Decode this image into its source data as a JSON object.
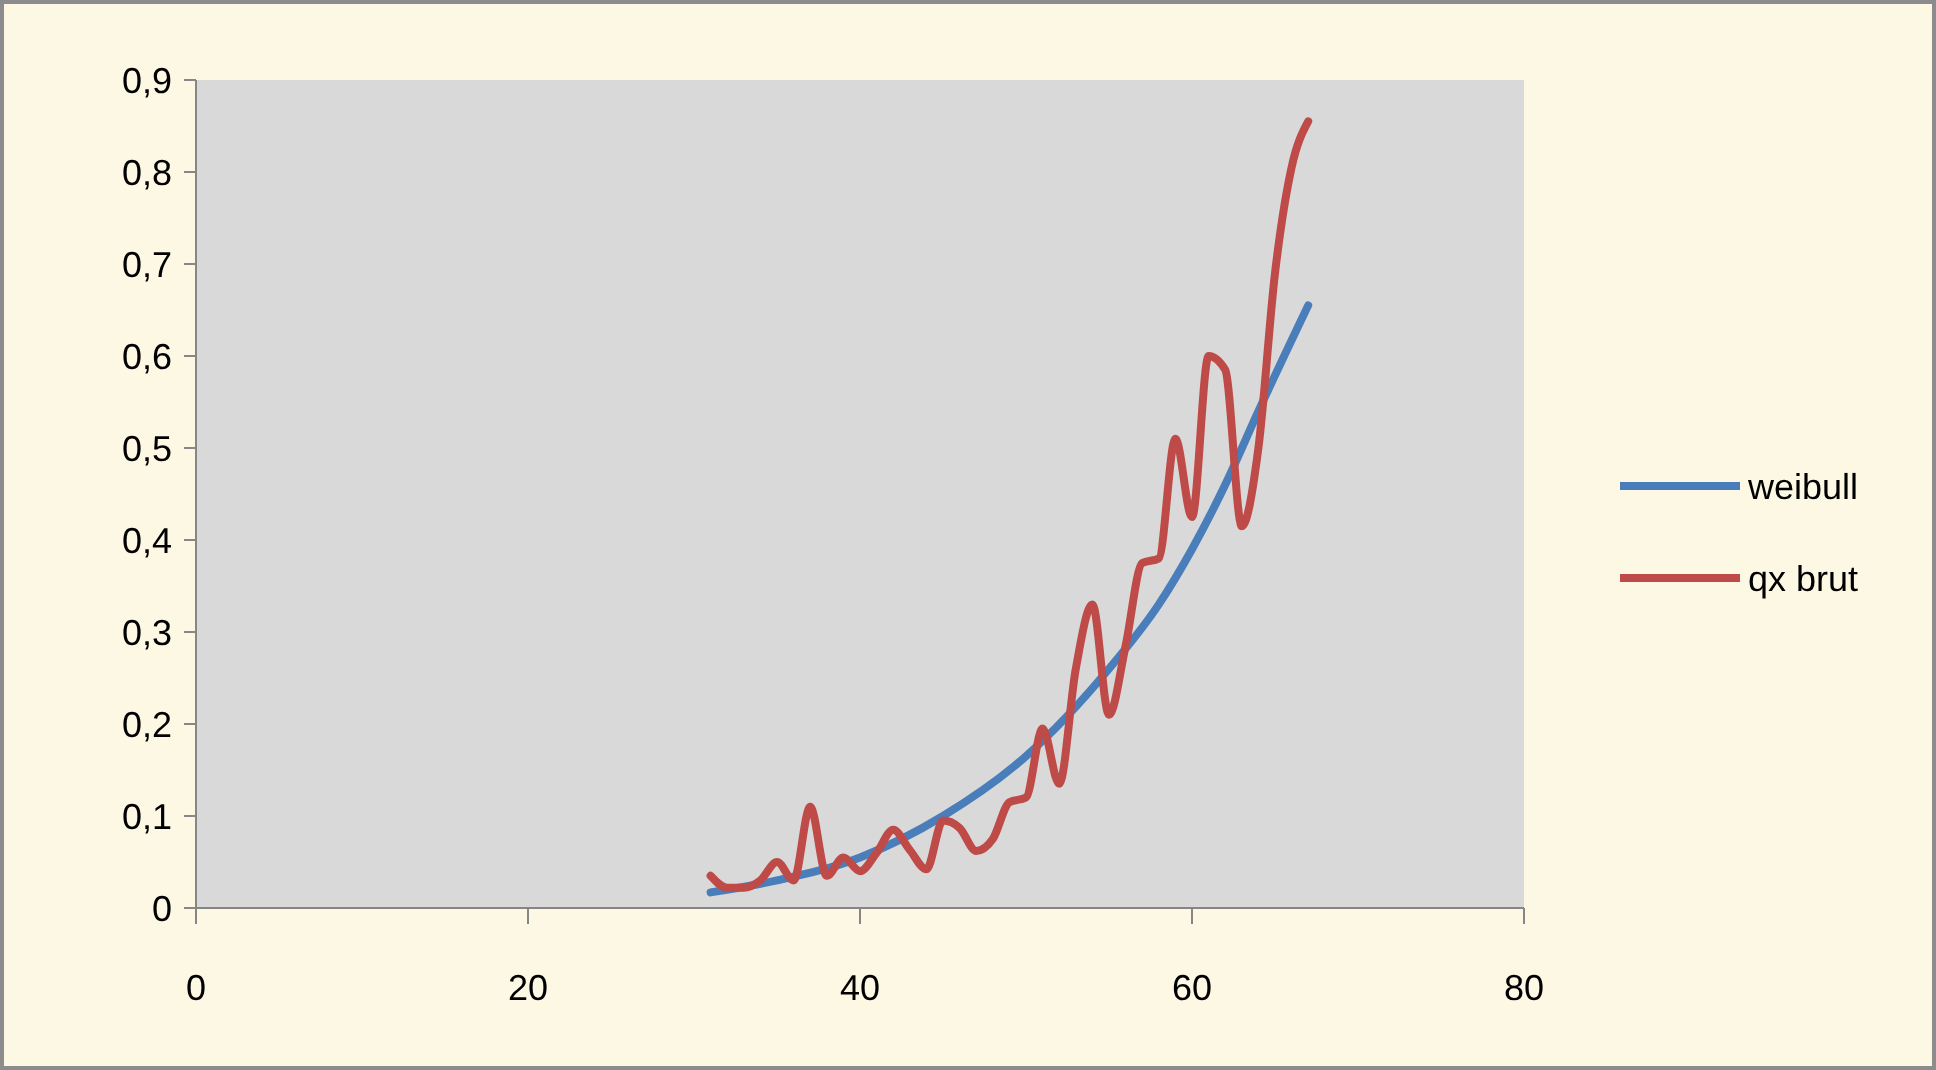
{
  "chart_data": {
    "type": "line",
    "legend": "right",
    "grid": false,
    "marker": "none",
    "xlim": [
      0,
      80
    ],
    "xticks": [
      0,
      20,
      40,
      60,
      80
    ],
    "ylim": [
      0,
      0.9
    ],
    "yticks": [
      0,
      {
        "value": 0.1,
        "label": "0,1"
      },
      {
        "value": 0.2,
        "label": "0,2"
      },
      {
        "value": 0.3,
        "label": "0,3"
      },
      {
        "value": 0.4,
        "label": "0,4"
      },
      {
        "value": 0.5,
        "label": "0,5"
      },
      {
        "value": 0.6,
        "label": "0,6"
      },
      {
        "value": 0.7,
        "label": "0,7"
      },
      {
        "value": 0.8,
        "label": "0,8"
      },
      {
        "value": 0.9,
        "label": "0,9"
      }
    ],
    "series": [
      {
        "name": "weibull",
        "color": "#4a7ebb",
        "x": [
          31,
          35,
          40,
          45,
          50,
          55,
          58,
          60,
          62,
          64,
          67
        ],
        "values": [
          0.017,
          0.03,
          0.055,
          0.1,
          0.165,
          0.26,
          0.33,
          0.39,
          0.46,
          0.54,
          0.655
        ]
      },
      {
        "name": "qx brut",
        "color": "#be4b48",
        "x": [
          31,
          32,
          33,
          34,
          35,
          36,
          37,
          38,
          39,
          40,
          41,
          42,
          43,
          44,
          45,
          46,
          47,
          48,
          49,
          50,
          51,
          52,
          53,
          54,
          55,
          56,
          57,
          58,
          59,
          60,
          61,
          62,
          63,
          64,
          65,
          66,
          67
        ],
        "values": [
          0.035,
          0.022,
          0.022,
          0.03,
          0.05,
          0.03,
          0.11,
          0.035,
          0.055,
          0.04,
          0.06,
          0.085,
          0.063,
          0.042,
          0.095,
          0.087,
          0.062,
          0.075,
          0.115,
          0.12,
          0.195,
          0.135,
          0.26,
          0.33,
          0.21,
          0.285,
          0.375,
          0.38,
          0.51,
          0.425,
          0.6,
          0.585,
          0.415,
          0.5,
          0.69,
          0.805,
          0.855
        ]
      }
    ]
  }
}
